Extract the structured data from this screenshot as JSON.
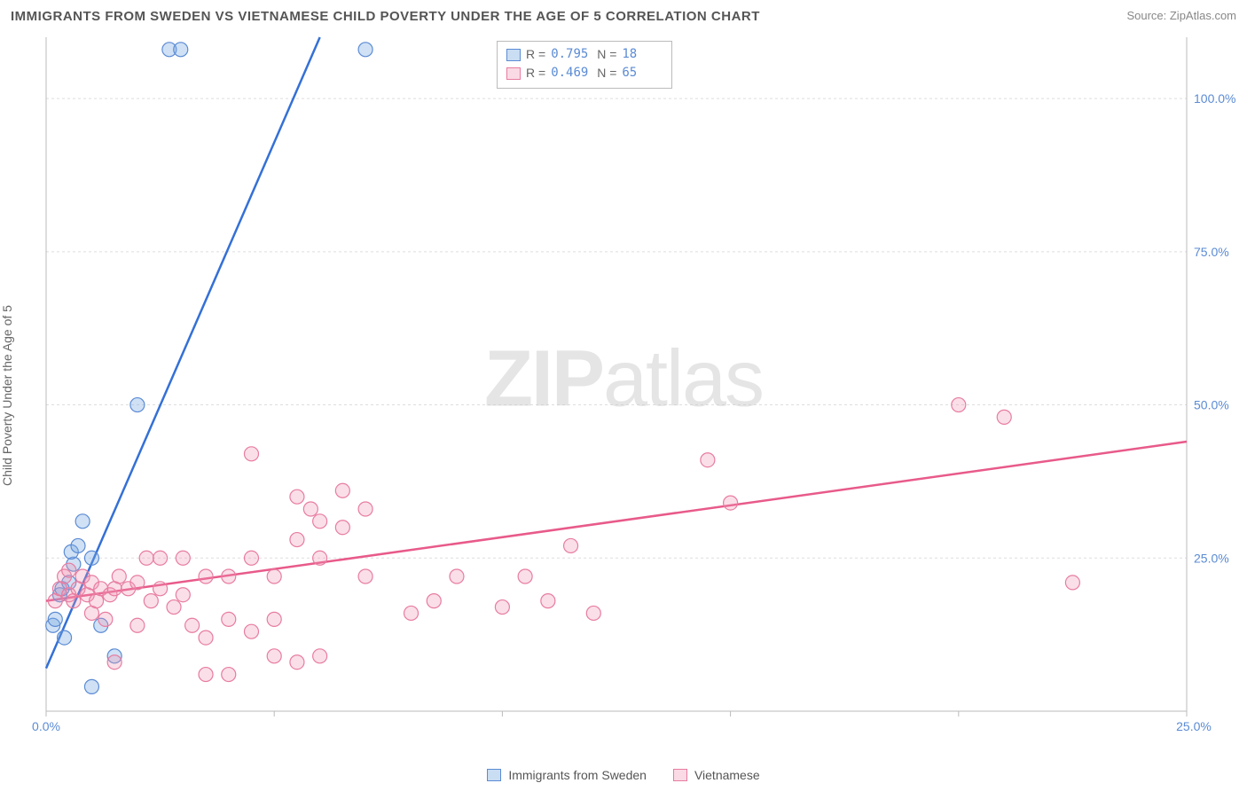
{
  "title": "IMMIGRANTS FROM SWEDEN VS VIETNAMESE CHILD POVERTY UNDER THE AGE OF 5 CORRELATION CHART",
  "source_label": "Source: ZipAtlas.com",
  "y_axis_label": "Child Poverty Under the Age of 5",
  "watermark_prefix": "ZIP",
  "watermark_suffix": "atlas",
  "chart": {
    "type": "scatter",
    "xlim": [
      0,
      25
    ],
    "ylim": [
      0,
      110
    ],
    "x_tick_step": 5,
    "y_ticks": [
      25,
      50,
      75,
      100
    ],
    "y_tick_labels": [
      "25.0%",
      "50.0%",
      "75.0%",
      "100.0%"
    ],
    "x_origin_label": "0.0%",
    "x_max_label": "25.0%",
    "background_color": "#ffffff",
    "grid_color": "#dddddd",
    "axis_color": "#bbbbbb",
    "marker_radius": 8,
    "label_color": "#5b8bd4",
    "label_fontsize": 14,
    "series": [
      {
        "name": "Immigrants from Sweden",
        "color_fill": "rgba(120,170,225,0.35)",
        "color_stroke": "#5b8bd4",
        "line_color": "#3470d6",
        "line_width": 2.5,
        "R": "0.795",
        "N": "18",
        "trend": {
          "x1": 0,
          "y1": 7,
          "x2": 6.0,
          "y2": 110
        },
        "points": [
          [
            0.15,
            14
          ],
          [
            0.2,
            15
          ],
          [
            0.4,
            12
          ],
          [
            0.3,
            19
          ],
          [
            0.35,
            20
          ],
          [
            0.5,
            21
          ],
          [
            0.6,
            24
          ],
          [
            0.55,
            26
          ],
          [
            0.7,
            27
          ],
          [
            0.8,
            31
          ],
          [
            1.0,
            25
          ],
          [
            1.2,
            14
          ],
          [
            1.5,
            9
          ],
          [
            1.0,
            4
          ],
          [
            2.0,
            50
          ],
          [
            2.7,
            108
          ],
          [
            2.95,
            108
          ],
          [
            7.0,
            108
          ]
        ]
      },
      {
        "name": "Vietnamese",
        "color_fill": "rgba(240,150,180,0.3)",
        "color_stroke": "#e87ca0",
        "line_color": "#e85a8a",
        "line_width": 2.5,
        "R": "0.469",
        "N": "65",
        "trend": {
          "x1": 0,
          "y1": 18,
          "x2": 25,
          "y2": 44
        },
        "points": [
          [
            0.2,
            18
          ],
          [
            0.3,
            20
          ],
          [
            0.4,
            22
          ],
          [
            0.5,
            19
          ],
          [
            0.5,
            23
          ],
          [
            0.6,
            18
          ],
          [
            0.7,
            20
          ],
          [
            0.8,
            22
          ],
          [
            0.9,
            19
          ],
          [
            1.0,
            21
          ],
          [
            1.0,
            16
          ],
          [
            1.1,
            18
          ],
          [
            1.2,
            20
          ],
          [
            1.3,
            15
          ],
          [
            1.4,
            19
          ],
          [
            1.5,
            20
          ],
          [
            1.6,
            22
          ],
          [
            1.5,
            8
          ],
          [
            1.8,
            20
          ],
          [
            2.0,
            21
          ],
          [
            2.2,
            25
          ],
          [
            2.0,
            14
          ],
          [
            2.3,
            18
          ],
          [
            2.5,
            20
          ],
          [
            2.5,
            25
          ],
          [
            2.8,
            17
          ],
          [
            3.0,
            25
          ],
          [
            3.0,
            19
          ],
          [
            3.2,
            14
          ],
          [
            3.5,
            22
          ],
          [
            3.5,
            12
          ],
          [
            3.5,
            6
          ],
          [
            4.0,
            22
          ],
          [
            4.0,
            15
          ],
          [
            4.0,
            6
          ],
          [
            4.5,
            25
          ],
          [
            4.5,
            13
          ],
          [
            4.5,
            42
          ],
          [
            5.0,
            22
          ],
          [
            5.0,
            15
          ],
          [
            5.0,
            9
          ],
          [
            5.5,
            35
          ],
          [
            5.5,
            28
          ],
          [
            5.5,
            8
          ],
          [
            5.8,
            33
          ],
          [
            6.0,
            31
          ],
          [
            6.0,
            25
          ],
          [
            6.0,
            9
          ],
          [
            6.5,
            36
          ],
          [
            6.5,
            30
          ],
          [
            7.0,
            22
          ],
          [
            7.0,
            33
          ],
          [
            8.0,
            16
          ],
          [
            8.5,
            18
          ],
          [
            9.0,
            22
          ],
          [
            10.0,
            17
          ],
          [
            10.5,
            22
          ],
          [
            11.0,
            18
          ],
          [
            11.5,
            27
          ],
          [
            12.0,
            16
          ],
          [
            14.5,
            41
          ],
          [
            15.0,
            34
          ],
          [
            20.0,
            50
          ],
          [
            21.0,
            48
          ],
          [
            22.5,
            21
          ]
        ]
      }
    ]
  },
  "stats_legend": {
    "r_label": "R =",
    "n_label": "N ="
  },
  "bottom_legend": {
    "items": [
      "Immigrants from Sweden",
      "Vietnamese"
    ]
  }
}
